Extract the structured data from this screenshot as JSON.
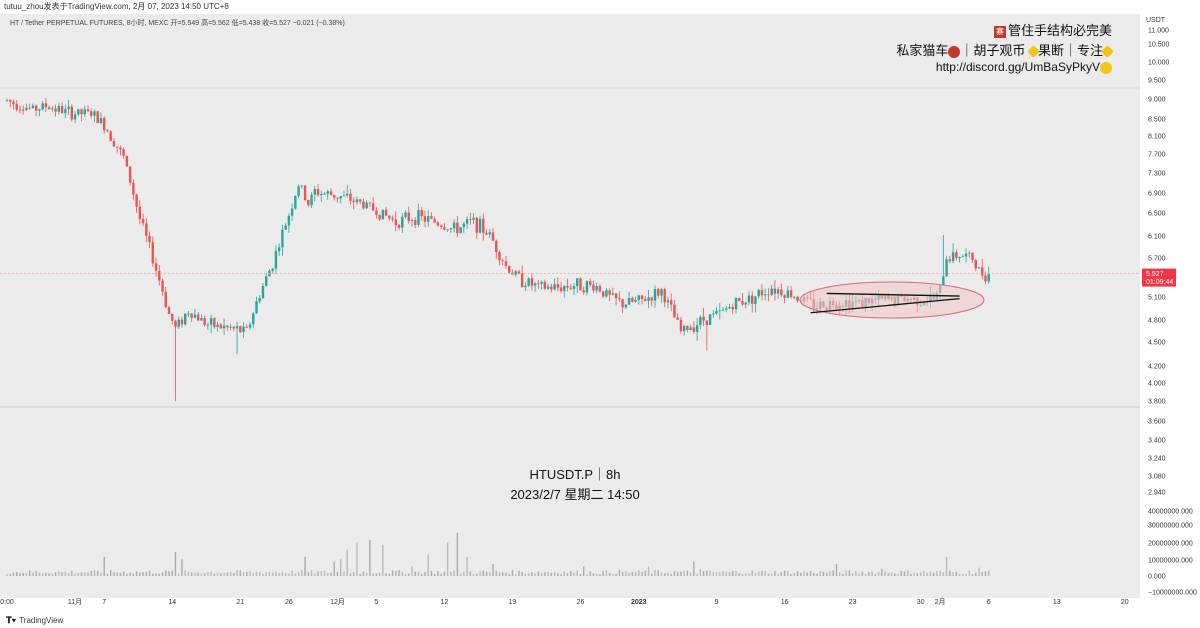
{
  "header": {
    "publish_line": "tutuu_zhou发表于TradingView.com, 2月 07, 2023 14:50 UTC+8",
    "symbol_legend": "HT / Tether PERPETUAL FUTURES, 8小时, MEXC  开=5.549  高=5.562  低=5.438  收=5.527  −0.021 (−0.38%)"
  },
  "overlay": {
    "badge_icon": "red-square-badge-icon",
    "badge_char": "寨",
    "line1": "管住手结构必完美",
    "line2_a": "私家猫车",
    "line2_b": "｜胡子观币",
    "line2_c": "果断｜专注",
    "line3": "http://discord.gg/UmBaSyPkyV",
    "heart_icon": "heart-icon",
    "sparkle_icon": "sparkle-icon",
    "smile_icon": "smile-emoji-icon"
  },
  "center_note": {
    "line1": "HTUSDT.P｜8h",
    "line2": "2023/2/7 星期二 14:50"
  },
  "price_axis": {
    "unit": "USDT",
    "current_price": "5.527",
    "countdown": "01:09:44",
    "current_color": "#f23645"
  },
  "footer": {
    "brand": "TradingView",
    "logo_icon": "tradingview-logo-icon"
  },
  "colors": {
    "up": "#26a69a",
    "down": "#ef5350",
    "background": "#ebebeb",
    "ellipse_fill": "#f3c6c9",
    "ellipse_stroke": "#d96b74"
  },
  "chart_data": {
    "type": "candlestick",
    "interval": "8h",
    "symbol": "HTUSDT.P",
    "x_ticks": [
      {
        "label": "0:00",
        "candle": 0
      },
      {
        "label": "11月",
        "candle": 21
      },
      {
        "label": "7",
        "candle": 30
      },
      {
        "label": "14",
        "candle": 51
      },
      {
        "label": "21",
        "candle": 72
      },
      {
        "label": "26",
        "candle": 87
      },
      {
        "label": "12月",
        "candle": 102
      },
      {
        "label": "5",
        "candle": 114
      },
      {
        "label": "12",
        "candle": 135
      },
      {
        "label": "19",
        "candle": 156
      },
      {
        "label": "26",
        "candle": 177
      },
      {
        "label": "2023",
        "candle": 195
      },
      {
        "label": "9",
        "candle": 219
      },
      {
        "label": "16",
        "candle": 240
      },
      {
        "label": "23",
        "candle": 261
      },
      {
        "label": "30",
        "candle": 282
      },
      {
        "label": "2月",
        "candle": 288
      },
      {
        "label": "6",
        "candle": 303
      },
      {
        "label": "13",
        "candle": 324
      },
      {
        "label": "20",
        "candle": 345
      }
    ],
    "price_ticks": [
      "11.000",
      "10.500",
      "10.000",
      "9.500",
      "9.000",
      "8.500",
      "8.100",
      "7.700",
      "7.300",
      "6.900",
      "6.500",
      "6.100",
      "5.700",
      "5.100",
      "4.800",
      "4.500",
      "4.200",
      "4.000",
      "3.800",
      "3.600",
      "3.400",
      "3.240",
      "3.080",
      "2.940"
    ],
    "volume_ticks": [
      "40000000.000",
      "30000000.000",
      "20000000.000",
      "10000000.000",
      "0.000",
      "−10000000.000"
    ],
    "price_range": [
      2.85,
      11.1
    ],
    "log_scale": true,
    "grid": false,
    "annotations": {
      "upper_trendline": {
        "from": [
          253,
          5.21
        ],
        "to": [
          294,
          5.17
        ]
      },
      "lower_trendline": {
        "from": [
          248,
          4.92
        ],
        "to": [
          294,
          5.13
        ]
      },
      "ellipse": "consolidation triangle highlighted",
      "current_line_price": 5.527
    },
    "anchors": [
      [
        0,
        9.25
      ],
      [
        8,
        9.0
      ],
      [
        12,
        9.1
      ],
      [
        20,
        8.9
      ],
      [
        26,
        8.9
      ],
      [
        30,
        8.6
      ],
      [
        36,
        7.8
      ],
      [
        41,
        6.5
      ],
      [
        46,
        5.6
      ],
      [
        50,
        4.9
      ],
      [
        52,
        4.7
      ],
      [
        56,
        4.95
      ],
      [
        62,
        4.75
      ],
      [
        68,
        4.7
      ],
      [
        74,
        4.65
      ],
      [
        78,
        5.2
      ],
      [
        82,
        5.7
      ],
      [
        86,
        6.4
      ],
      [
        90,
        7.2
      ],
      [
        93,
        6.8
      ],
      [
        95,
        7.05
      ],
      [
        99,
        7.0
      ],
      [
        103,
        6.95
      ],
      [
        110,
        6.8
      ],
      [
        120,
        6.45
      ],
      [
        126,
        6.55
      ],
      [
        132,
        6.45
      ],
      [
        138,
        6.3
      ],
      [
        144,
        6.45
      ],
      [
        149,
        6.2
      ],
      [
        154,
        5.65
      ],
      [
        158,
        5.45
      ],
      [
        164,
        5.3
      ],
      [
        170,
        5.3
      ],
      [
        176,
        5.35
      ],
      [
        182,
        5.32
      ],
      [
        186,
        5.15
      ],
      [
        190,
        5.05
      ],
      [
        196,
        5.1
      ],
      [
        202,
        5.25
      ],
      [
        205,
        4.95
      ],
      [
        208,
        4.65
      ],
      [
        212,
        4.75
      ],
      [
        216,
        4.85
      ],
      [
        220,
        4.9
      ],
      [
        224,
        5.05
      ],
      [
        230,
        5.15
      ],
      [
        236,
        5.3
      ],
      [
        242,
        5.2
      ],
      [
        246,
        5.1
      ],
      [
        250,
        5.02
      ],
      [
        256,
        5.08
      ],
      [
        262,
        5.07
      ],
      [
        268,
        5.1
      ],
      [
        274,
        5.12
      ],
      [
        280,
        5.12
      ],
      [
        286,
        5.12
      ],
      [
        288,
        5.25
      ],
      [
        290,
        5.8
      ],
      [
        294,
        5.85
      ],
      [
        298,
        5.78
      ],
      [
        300,
        5.55
      ],
      [
        303,
        5.53
      ]
    ],
    "volume_spikes": {
      "30": 16000000,
      "52": 20000000,
      "54": 14000000,
      "92": 16000000,
      "101": 12000000,
      "103": 14000000,
      "105": 22000000,
      "108": 28000000,
      "112": 30000000,
      "116": 26000000,
      "125": 8000000,
      "130": 18000000,
      "136": 28000000,
      "139": 36000000,
      "142": 16000000,
      "150": 10000000,
      "178": 8000000,
      "198": 8000000,
      "212": 12000000,
      "214": 6000000,
      "256": 10000000,
      "270": 6000000,
      "290": 16000000,
      "300": 7000000
    }
  }
}
